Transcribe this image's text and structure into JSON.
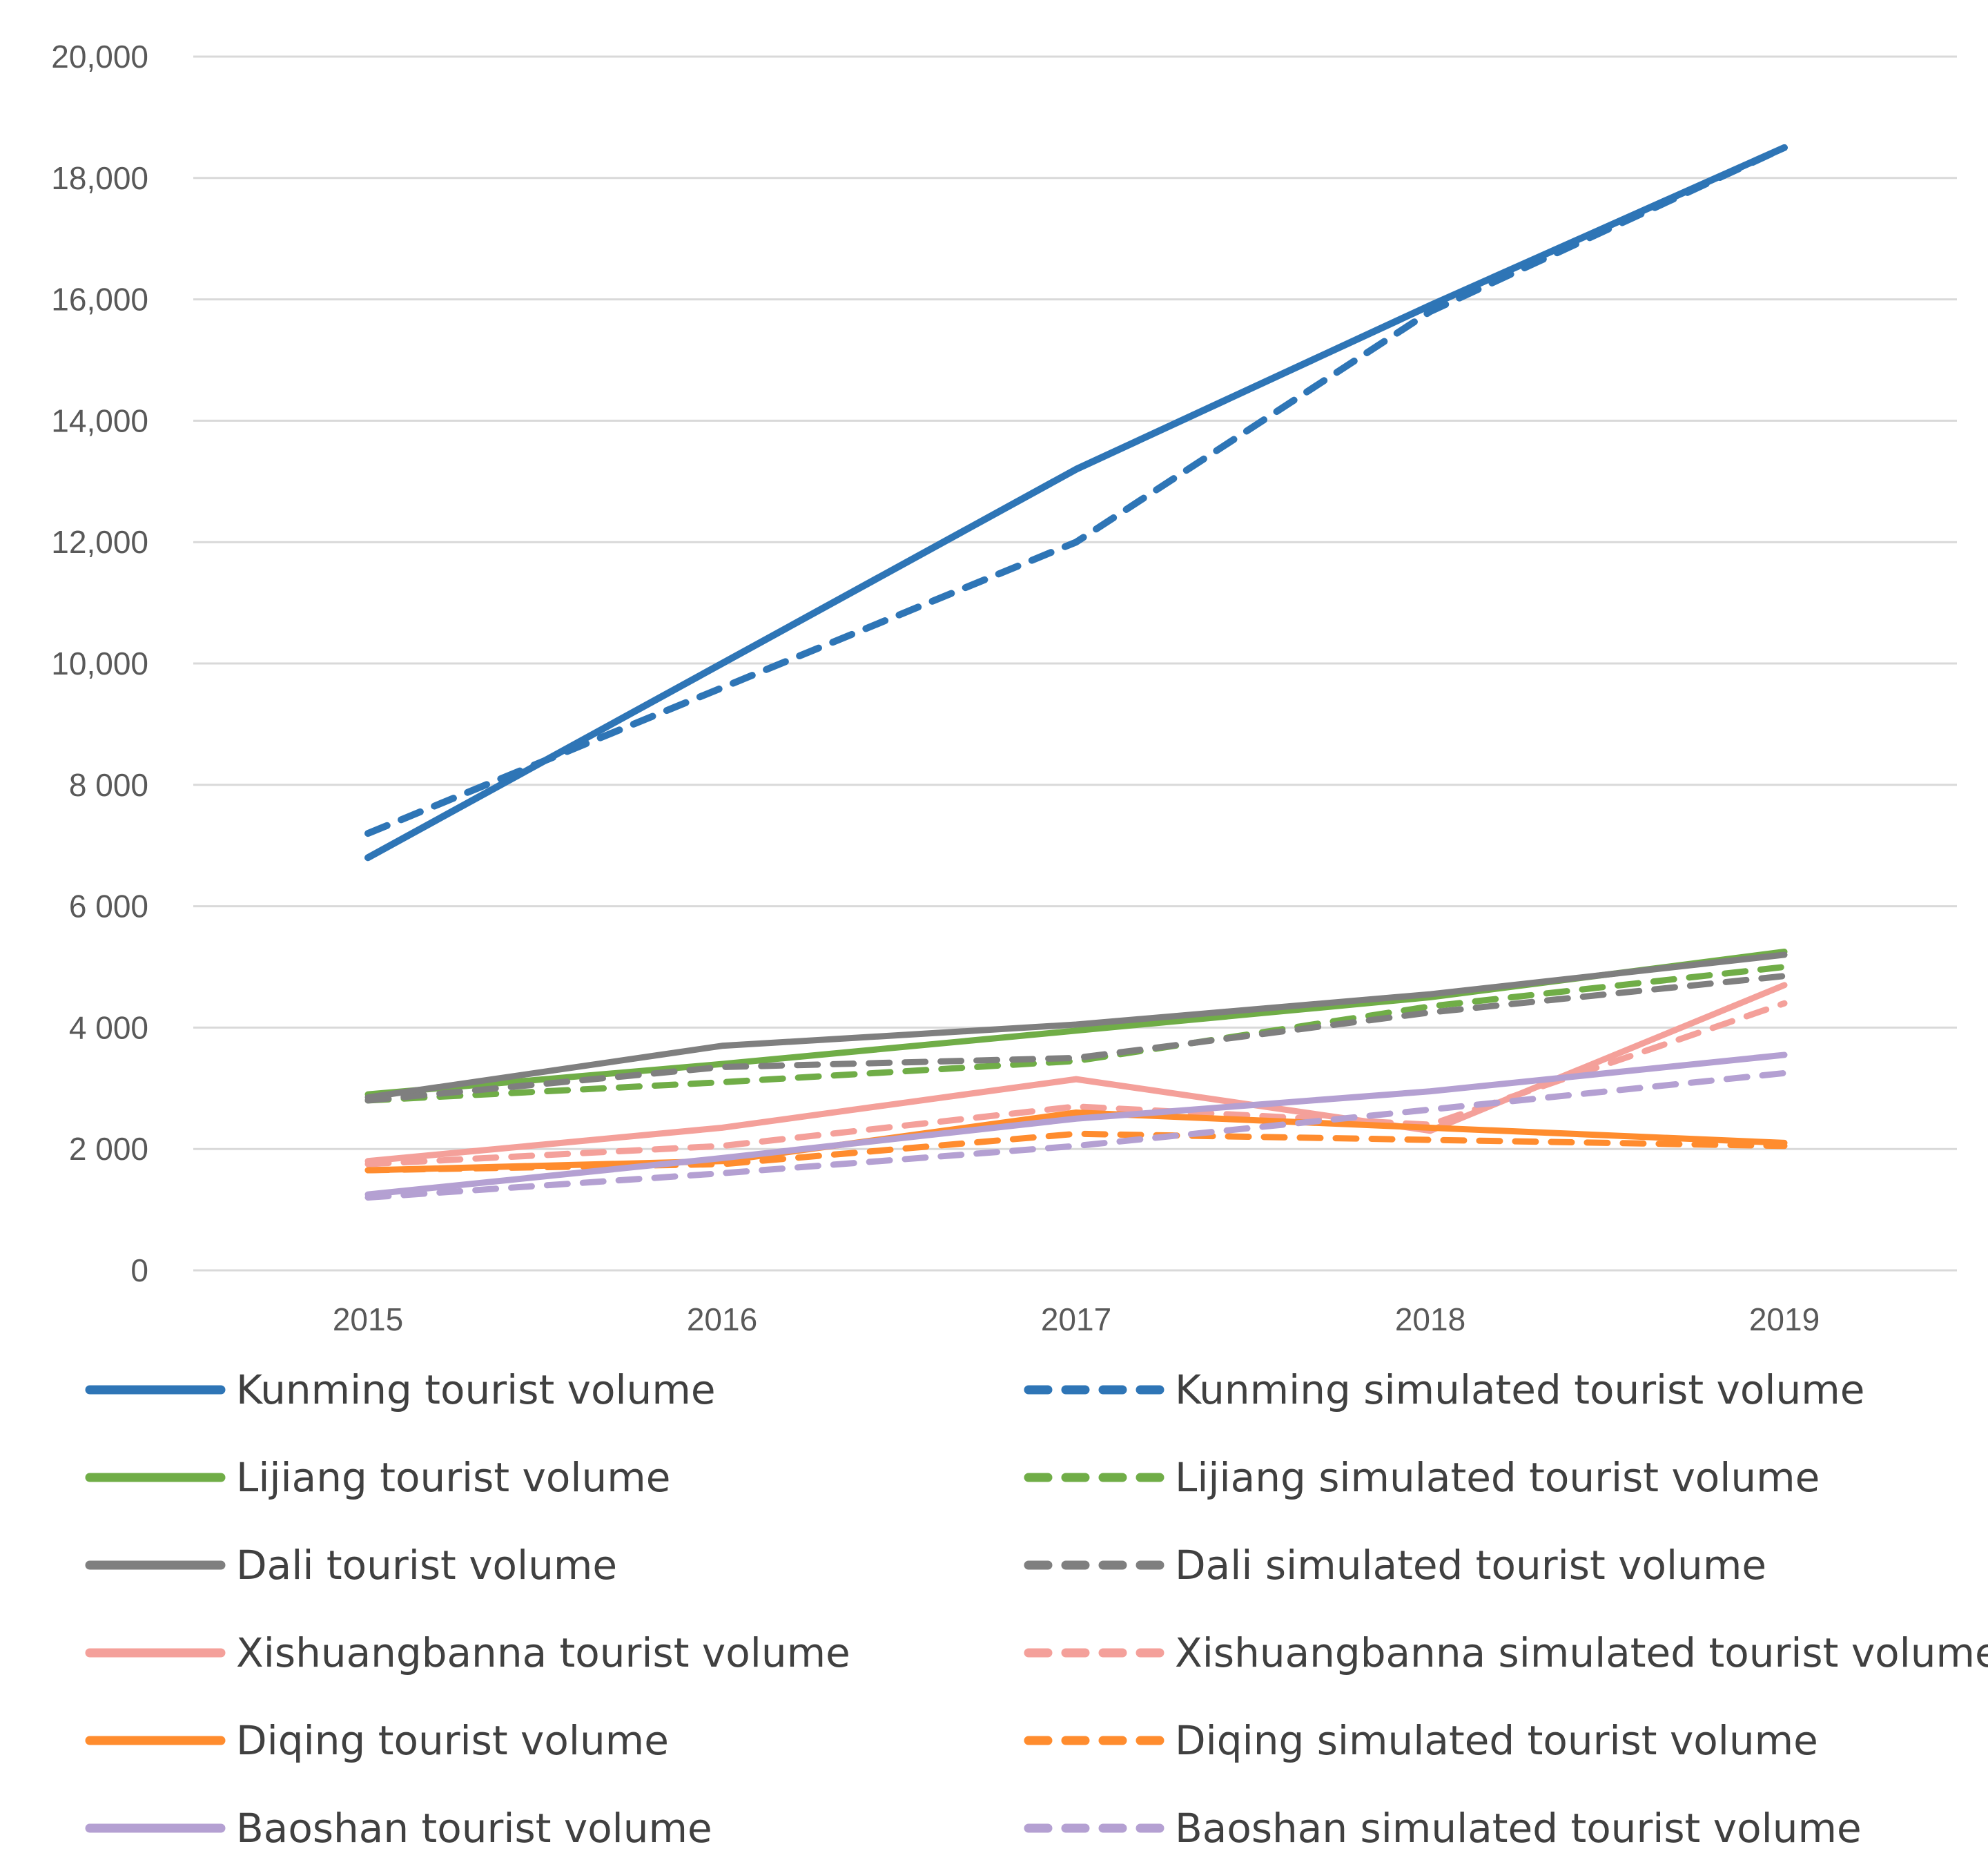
{
  "chart_data": {
    "type": "line",
    "title": "",
    "xlabel": "",
    "ylabel": "",
    "x": [
      "2015",
      "2016",
      "2017",
      "2018",
      "2019"
    ],
    "ylim": [
      0,
      20000
    ],
    "y_ticks": [
      {
        "value": 0,
        "label": "0"
      },
      {
        "value": 2000,
        "label": "2 000"
      },
      {
        "value": 4000,
        "label": "4 000"
      },
      {
        "value": 6000,
        "label": "6 000"
      },
      {
        "value": 8000,
        "label": "8 000"
      },
      {
        "value": 10000,
        "label": "10,000"
      },
      {
        "value": 12000,
        "label": "12,000"
      },
      {
        "value": 14000,
        "label": "14,000"
      },
      {
        "value": 16000,
        "label": "16,000"
      },
      {
        "value": 18000,
        "label": "18,000"
      },
      {
        "value": 20000,
        "label": "20,000"
      }
    ],
    "grid": true,
    "legend_position": "bottom",
    "series": [
      {
        "name": "Kunming tourist volume",
        "color": "#2E75B6",
        "dashed": false,
        "values": [
          6800,
          10000,
          13200,
          15900,
          18500
        ]
      },
      {
        "name": "Kunming simulated tourist volume",
        "color": "#2E75B6",
        "dashed": true,
        "values": [
          7200,
          9600,
          12000,
          15800,
          18500
        ]
      },
      {
        "name": "Lijiang tourist volume",
        "color": "#70AD47",
        "dashed": false,
        "values": [
          2900,
          3400,
          3950,
          4500,
          5250
        ]
      },
      {
        "name": "Lijiang simulated tourist volume",
        "color": "#70AD47",
        "dashed": true,
        "values": [
          2800,
          3100,
          3450,
          4350,
          5000
        ]
      },
      {
        "name": "Dali tourist volume",
        "color": "#7F7F7F",
        "dashed": false,
        "values": [
          2850,
          3700,
          4050,
          4550,
          5200
        ]
      },
      {
        "name": "Dali simulated tourist volume",
        "color": "#7F7F7F",
        "dashed": true,
        "values": [
          2800,
          3350,
          3500,
          4250,
          4850
        ]
      },
      {
        "name": "Xishuangbanna tourist volume",
        "color": "#F4A09A",
        "dashed": false,
        "values": [
          1800,
          2350,
          3150,
          2300,
          4700
        ]
      },
      {
        "name": "Xishuangbanna simulated tourist volume",
        "color": "#F4A09A",
        "dashed": true,
        "values": [
          1750,
          2050,
          2700,
          2400,
          4400
        ]
      },
      {
        "name": "Diqing tourist volume",
        "color": "#FF8C2E",
        "dashed": false,
        "values": [
          1650,
          1800,
          2600,
          2350,
          2100
        ]
      },
      {
        "name": "Diqing simulated tourist volume",
        "color": "#FF8C2E",
        "dashed": true,
        "values": [
          1650,
          1750,
          2250,
          2150,
          2050
        ]
      },
      {
        "name": "Baoshan tourist volume",
        "color": "#B4A0D2",
        "dashed": false,
        "values": [
          1250,
          1850,
          2500,
          2950,
          3550
        ]
      },
      {
        "name": "Baoshan simulated tourist volume",
        "color": "#B4A0D2",
        "dashed": true,
        "values": [
          1200,
          1600,
          2050,
          2650,
          3250
        ]
      }
    ]
  }
}
